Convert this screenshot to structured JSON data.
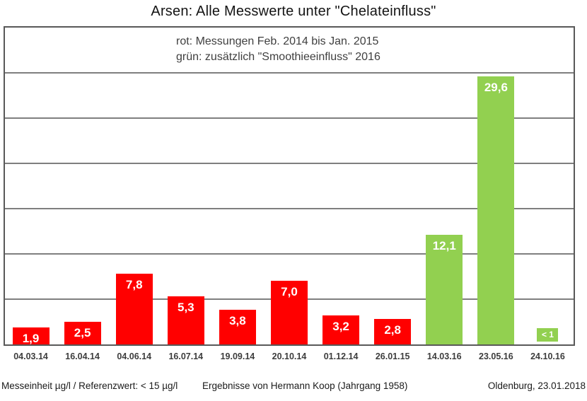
{
  "chart_data": {
    "type": "bar",
    "title": "Arsen: Alle Messwerte unter \"Chelateinfluss\"",
    "annotation_lines": [
      "rot: Messungen Feb. 2014 bis Jan. 2015",
      "grün: zusätzlich \"Smoothieeinfluss\" 2016"
    ],
    "unit": "µg/l",
    "ylim": [
      0,
      35
    ],
    "gridline_step": 5,
    "grid": true,
    "legend_position": "inside-top-center",
    "colors": {
      "red": "#ff0000",
      "green": "#92d050"
    },
    "categories": [
      "04.03.14",
      "16.04.14",
      "04.06.14",
      "16.07.14",
      "19.09.14",
      "20.10.14",
      "01.12.14",
      "26.01.15",
      "14.03.16",
      "23.05.16",
      "24.10.16"
    ],
    "points": [
      {
        "date": "04.03.14",
        "value": 1.9,
        "label": "1,9",
        "series": "red"
      },
      {
        "date": "16.04.14",
        "value": 2.5,
        "label": "2,5",
        "series": "red"
      },
      {
        "date": "04.06.14",
        "value": 7.8,
        "label": "7,8",
        "series": "red"
      },
      {
        "date": "16.07.14",
        "value": 5.3,
        "label": "5,3",
        "series": "red"
      },
      {
        "date": "19.09.14",
        "value": 3.8,
        "label": "3,8",
        "series": "red"
      },
      {
        "date": "20.10.14",
        "value": 7.0,
        "label": "7,0",
        "series": "red"
      },
      {
        "date": "01.12.14",
        "value": 3.2,
        "label": "3,2",
        "series": "red"
      },
      {
        "date": "26.01.15",
        "value": 2.8,
        "label": "2,8",
        "series": "red"
      },
      {
        "date": "14.03.16",
        "value": 12.1,
        "label": "12,1",
        "series": "green"
      },
      {
        "date": "23.05.16",
        "value": 29.6,
        "label": "29,6",
        "series": "green"
      },
      {
        "date": "24.10.16",
        "value": 0.5,
        "label": "< 1",
        "series": "green",
        "label_boxed": true
      }
    ]
  },
  "footer": {
    "left": "Messeinheit µg/l / Referenzwert: < 15 µg/l",
    "center": "Ergebnisse von Hermann Koop (Jahrgang 1958)",
    "right": "Oldenburg, 23.01.2018"
  }
}
